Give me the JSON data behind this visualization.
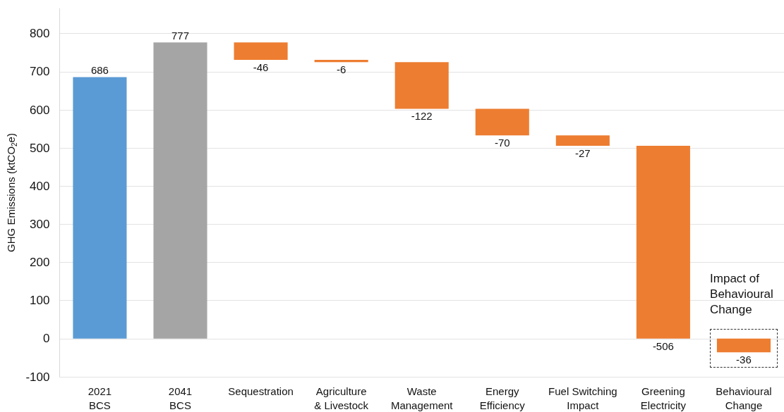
{
  "chart_data": {
    "type": "bar",
    "ylabel": "GHG Emissions (ktCO$_{2}$e)",
    "categories": [
      "2021\nBCS",
      "2041\nBCS",
      "Sequestration",
      "Agriculture\n& Livestock",
      "Waste\nManagement",
      "Energy\nEfficiency",
      "Fuel Switching\nImpact",
      "Greening\nElectricity",
      "Behavioural\nChange"
    ],
    "values": [
      686,
      777,
      -46,
      -6,
      -122,
      -70,
      -27,
      -506,
      -36
    ],
    "base": [
      0,
      0,
      777,
      731,
      725,
      603,
      533,
      506,
      0
    ],
    "colors": [
      "#5b9bd5",
      "#a5a5a5",
      "#ed7d31",
      "#ed7d31",
      "#ed7d31",
      "#ed7d31",
      "#ed7d31",
      "#ed7d31",
      "#ed7d31"
    ],
    "data_labels": true,
    "ylim": [
      -100,
      866
    ],
    "yticks": [
      -100,
      0,
      100,
      200,
      300,
      400,
      500,
      600,
      700,
      800
    ],
    "grid": "y",
    "annotations": [
      "Impact of\nBehavioural\nChange"
    ]
  }
}
